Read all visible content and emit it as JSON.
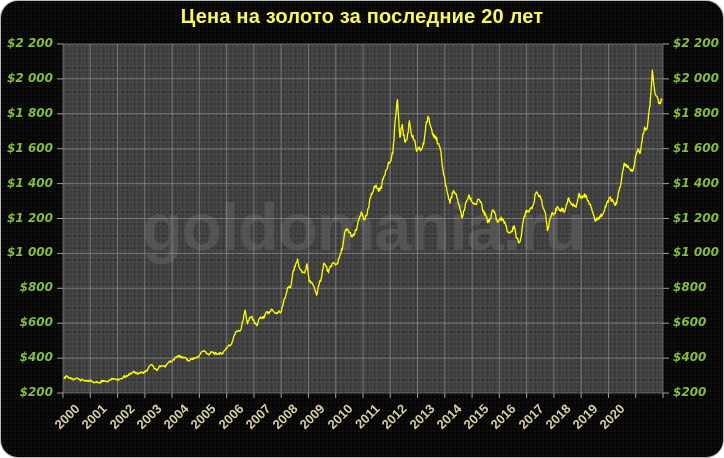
{
  "card": {
    "background": "#070707",
    "border_color": "#b7b7b7"
  },
  "chart_data": {
    "type": "line",
    "title": "Цена на золото за последние 20 лет",
    "watermark": "goldomania.ru",
    "xlabel": "",
    "ylabel": "",
    "ylim": [
      200,
      2200
    ],
    "y_step": 200,
    "grid": true,
    "legend": "none",
    "y_tick_labels": [
      "$2 200",
      "$2 000",
      "$1 800",
      "$1 600",
      "$1 400",
      "$1 200",
      "$1 000",
      "$800",
      "$600",
      "$400",
      "$200"
    ],
    "x_tick_labels": [
      "2000",
      "2001",
      "2002",
      "2003",
      "2004",
      "2005",
      "2006",
      "2007",
      "2008",
      "2009",
      "2010",
      "2011",
      "2012",
      "2013",
      "2014",
      "2015",
      "2016",
      "2017",
      "2018",
      "2019",
      "2020"
    ],
    "frequency": "monthly",
    "x_range": "Jan 2000 - Dec 2020",
    "series": [
      {
        "name": "gold_price_usd_per_oz",
        "values": [
          283,
          300,
          286,
          280,
          275,
          286,
          282,
          274,
          274,
          270,
          266,
          272,
          265,
          262,
          263,
          260,
          272,
          270,
          267,
          272,
          284,
          283,
          276,
          276,
          281,
          295,
          294,
          302,
          314,
          321,
          313,
          310,
          319,
          317,
          319,
          333,
          356,
          359,
          340,
          328,
          355,
          356,
          351,
          360,
          379,
          379,
          390,
          407,
          414,
          405,
          406,
          403,
          383,
          392,
          398,
          400,
          405,
          420,
          439,
          442,
          424,
          423,
          434,
          429,
          422,
          430,
          424,
          437,
          456,
          470,
          476,
          510,
          550,
          555,
          557,
          611,
          675,
          596,
          634,
          632,
          598,
          586,
          627,
          630,
          631,
          665,
          655,
          680,
          667,
          655,
          665,
          665,
          713,
          755,
          806,
          803,
          890,
          922,
          968,
          910,
          889,
          889,
          940,
          839,
          830,
          807,
          760,
          820,
          858,
          943,
          924,
          890,
          929,
          946,
          934,
          950,
          996,
          1043,
          1127,
          1135,
          1118,
          1095,
          1113,
          1149,
          1205,
          1232,
          1193,
          1216,
          1271,
          1342,
          1370,
          1391,
          1356,
          1373,
          1424,
          1474,
          1512,
          1529,
          1573,
          1757,
          1880,
          1666,
          1739,
          1640,
          1652,
          1760,
          1674,
          1650,
          1585,
          1597,
          1594,
          1626,
          1745,
          1780,
          1722,
          1685,
          1671,
          1628,
          1593,
          1487,
          1414,
          1343,
          1287,
          1347,
          1349,
          1316,
          1276,
          1205,
          1244,
          1300,
          1336,
          1299,
          1288,
          1279,
          1311,
          1296,
          1237,
          1223,
          1176,
          1201,
          1250,
          1227,
          1178,
          1198,
          1198,
          1181,
          1130,
          1117,
          1125,
          1159,
          1086,
          1060,
          1097,
          1200,
          1246,
          1242,
          1260,
          1276,
          1340,
          1340,
          1327,
          1266,
          1238,
          1130,
          1192,
          1234,
          1231,
          1267,
          1246,
          1260,
          1236,
          1283,
          1315,
          1280,
          1282,
          1264,
          1331,
          1330,
          1325,
          1335,
          1303,
          1281,
          1238,
          1185,
          1198,
          1215,
          1221,
          1250,
          1292,
          1320,
          1301,
          1286,
          1284,
          1359,
          1413,
          1500,
          1510,
          1495,
          1471,
          1480,
          1561,
          1597,
          1580,
          1683,
          1716,
          1732,
          1843,
          2050,
          1930,
          1900,
          1866,
          1880
        ]
      }
    ],
    "colors": {
      "title": "#f8f85a",
      "line": "#ffff00",
      "plot_background": "#3f3f3f",
      "grid": "#a0a0a0",
      "y_tick_label": "#84bd42",
      "x_tick_label": "#d9cfa6",
      "watermark": "#606060"
    }
  }
}
